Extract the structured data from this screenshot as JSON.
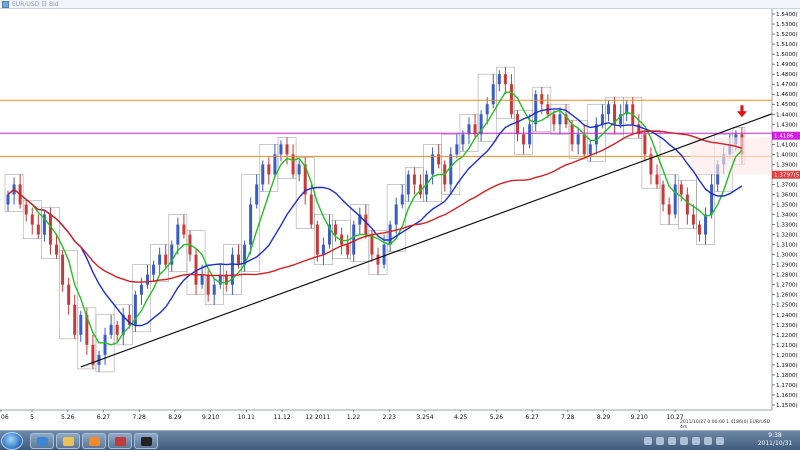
{
  "window": {
    "title": "EUR/USD 日 Bid"
  },
  "chart_data": {
    "type": "candlestick",
    "symbol": "EUR/USD",
    "price_ticks": [
      1.54,
      1.53,
      1.52,
      1.51,
      1.5,
      1.49,
      1.48,
      1.47,
      1.46,
      1.45,
      1.44,
      1.43,
      1.42,
      1.41,
      1.4,
      1.39,
      1.38,
      1.37,
      1.36,
      1.35,
      1.34,
      1.33,
      1.32,
      1.31,
      1.3,
      1.29,
      1.28,
      1.27,
      1.26,
      1.25,
      1.24,
      1.23,
      1.22,
      1.21,
      1.2,
      1.19,
      1.18,
      1.17,
      1.16,
      1.15
    ],
    "price_tick_labels": [
      "1.5400(",
      "1.5300(",
      "1.5200(",
      "1.5100(",
      "1.5000(",
      "1.4900(",
      "1.4800(",
      "1.4700(",
      "1.4600(",
      "1.4500(",
      "1.4400(",
      "1.4300(",
      "1.4200(",
      "1.4100(",
      "1.4000(",
      "1.3900(",
      "1.3800(",
      "1.3700(",
      "1.3600(",
      "1.3500(",
      "1.3400(",
      "1.3300(",
      "1.3200(",
      "1.3100(",
      "1.3000(",
      "1.2900(",
      "1.2800(",
      "1.2700(",
      "1.2600(",
      "1.2500(",
      "1.2400(",
      "1.2300(",
      "1.2200(",
      "1.2100(",
      "1.2000(",
      "1.1900(",
      "1.1800(",
      "1.1700(",
      "1.1600(",
      "1.1500("
    ],
    "x_labels": [
      "06",
      "5",
      "5.26",
      "6.27",
      "7.28",
      "8.29",
      "9.210",
      "10.11",
      "11.12",
      "12 2011",
      "1.22",
      "2.23",
      "3.254",
      "4.25",
      "5.26",
      "6.27",
      "7.28",
      "8.29",
      "9.210",
      "10.27"
    ],
    "highlighted_prices": [
      {
        "label": "1.4186",
        "value": 1.4186,
        "color": "#d21ee0"
      },
      {
        "label": "1.3797(5",
        "value": 1.3797,
        "color": "#e04040"
      }
    ],
    "horizontal_levels": [
      {
        "value": 1.454,
        "color": "#f28a1e"
      },
      {
        "value": 1.398,
        "color": "#f28a1e"
      },
      {
        "value": 1.421,
        "color": "#d21ee0"
      }
    ],
    "trendline": {
      "from": {
        "bar": 12,
        "price": 1.188
      },
      "to": {
        "bar": 128,
        "price": 1.445
      },
      "color": "#111111"
    },
    "marker": {
      "type": "down-arrow",
      "bar": 121,
      "price": 1.433,
      "color": "#e01010"
    },
    "series_colors": {
      "ma_fast": "#22c022",
      "ma_mid": "#1a2ed0",
      "ma_slow": "#d42020",
      "bull": "#3b5cc4",
      "bear": "#c83a3a",
      "box": "#8a8a8a"
    },
    "close": [
      1.36,
      1.37,
      1.35,
      1.34,
      1.33,
      1.32,
      1.34,
      1.31,
      1.3,
      1.27,
      1.25,
      1.22,
      1.24,
      1.21,
      1.19,
      1.2,
      1.22,
      1.23,
      1.22,
      1.24,
      1.23,
      1.26,
      1.27,
      1.28,
      1.29,
      1.3,
      1.29,
      1.31,
      1.33,
      1.32,
      1.3,
      1.27,
      1.28,
      1.26,
      1.27,
      1.28,
      1.27,
      1.3,
      1.29,
      1.31,
      1.35,
      1.37,
      1.39,
      1.38,
      1.4,
      1.41,
      1.4,
      1.38,
      1.39,
      1.36,
      1.33,
      1.3,
      1.31,
      1.33,
      1.32,
      1.31,
      1.3,
      1.33,
      1.34,
      1.32,
      1.3,
      1.29,
      1.31,
      1.33,
      1.35,
      1.36,
      1.38,
      1.37,
      1.36,
      1.38,
      1.4,
      1.39,
      1.37,
      1.4,
      1.41,
      1.42,
      1.43,
      1.42,
      1.44,
      1.45,
      1.47,
      1.48,
      1.47,
      1.44,
      1.42,
      1.41,
      1.43,
      1.46,
      1.45,
      1.44,
      1.43,
      1.44,
      1.43,
      1.41,
      1.42,
      1.4,
      1.41,
      1.43,
      1.44,
      1.45,
      1.43,
      1.44,
      1.45,
      1.43,
      1.42,
      1.4,
      1.38,
      1.37,
      1.35,
      1.34,
      1.37,
      1.36,
      1.34,
      1.33,
      1.32,
      1.34,
      1.37,
      1.39,
      1.4,
      1.41,
      1.42,
      1.4
    ]
  },
  "status_bar": {
    "text": "2011/10/27 0:00:00  1.4186(0)  EUR/USD  4m"
  },
  "clock": {
    "time": "9:38",
    "date": "2011/10/31"
  },
  "taskbar": {
    "apps": [
      "explorer-icon",
      "files-icon",
      "media-icon",
      "trader-icon",
      "chart-icon"
    ]
  }
}
